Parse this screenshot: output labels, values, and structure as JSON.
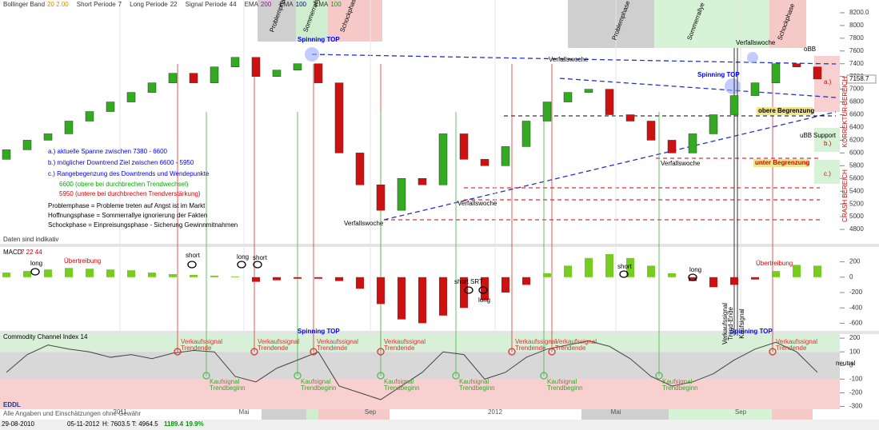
{
  "header": {
    "indicators": [
      {
        "name": "Bollinger Band",
        "params": "20 2.00"
      },
      {
        "name": "Short Periode",
        "params": "7"
      },
      {
        "name": "Long Periode",
        "params": "22"
      },
      {
        "name": "Signal Periode",
        "params": "44"
      },
      {
        "name": "EMA",
        "params": "200"
      },
      {
        "name": "EMA",
        "params": "100"
      },
      {
        "name": "EMA",
        "params": "100"
      }
    ]
  },
  "chart_data": [
    {
      "type": "candlestick",
      "open": [
        5900,
        6050,
        6200,
        6300,
        6500,
        6650,
        6800,
        6950,
        7100,
        7250,
        7100,
        7350,
        7500,
        7200,
        7300,
        7400,
        7100,
        6000,
        5500,
        5100,
        5600,
        5500,
        6300,
        5900,
        5800,
        6100,
        6500,
        6800,
        6950,
        7000,
        6600,
        6500,
        6200,
        6000,
        6300,
        6600,
        6900,
        7100,
        7400,
        7350
      ],
      "close": [
        6050,
        6200,
        6300,
        6500,
        6650,
        6800,
        6950,
        7100,
        7250,
        7100,
        7350,
        7500,
        7200,
        7300,
        7400,
        7100,
        6000,
        5500,
        5100,
        5600,
        5500,
        6300,
        5900,
        5800,
        6100,
        6500,
        6800,
        6950,
        7000,
        6600,
        6500,
        6200,
        6000,
        6300,
        6600,
        6900,
        7100,
        7400,
        7350,
        7160
      ],
      "ylim": [
        4600,
        8400
      ],
      "yticks": [
        4800,
        5000,
        5200,
        5400,
        5600,
        5800,
        6000,
        6200,
        6400,
        6600,
        6800,
        7000,
        7200,
        7400,
        7600,
        7800,
        8000,
        {
          "value": 8200,
          "label": "8200.0"
        }
      ],
      "last_value": 7158.7
    },
    {
      "type": "bar",
      "title": "MACD",
      "params": "7 22 44",
      "values": [
        60,
        80,
        100,
        120,
        110,
        100,
        90,
        60,
        40,
        30,
        20,
        10,
        -60,
        -40,
        -20,
        -20,
        -50,
        -150,
        -350,
        -550,
        -600,
        -500,
        -400,
        -300,
        -200,
        -100,
        50,
        150,
        250,
        300,
        250,
        150,
        50,
        -50,
        -130,
        -100,
        -30,
        80,
        160,
        150
      ],
      "ylim": [
        -700,
        300
      ],
      "yticks": [
        200,
        0,
        -200,
        -400,
        -600
      ]
    },
    {
      "type": "line",
      "title": "Commodity Channel Index 14",
      "values": [
        -50,
        80,
        150,
        120,
        100,
        60,
        80,
        50,
        90,
        110,
        100,
        -80,
        -120,
        -20,
        40,
        100,
        -150,
        -200,
        -250,
        -150,
        -50,
        100,
        80,
        -100,
        -50,
        60,
        120,
        150,
        180,
        140,
        50,
        -80,
        -150,
        -120,
        -60,
        40,
        120,
        170,
        100,
        -50
      ],
      "ylim": [
        -320,
        230
      ],
      "yticks": [
        200,
        100,
        0,
        -100,
        -200,
        -300
      ]
    }
  ],
  "phases": [
    "Problemphase",
    "Sommerrallye",
    "Schockphase",
    "Problemphase",
    "Sommerrallye",
    "Schockphase"
  ],
  "annotations": [
    "a.) aktuelle  Spanne zwischen 7380 - 6600",
    "b.) möglicher Downtrend Ziel zwischen 6600 - 5950",
    "c.) Rangebegenzung des Downtrends und Wendepunkte",
    "6600 (obere bei durchbrechen Trendwechsel)",
    "5950 (untere bei durchbrechen Trendverstärkung)",
    "Problemphase = Probleme treten auf Angst ist im Markt",
    "Hoffnungsphase = Sommerrallye ignorierung der Fakten",
    "Schockphase = Einpreisungsphase - Sicherung Gewinnmitnahmen",
    "Spinning TOP",
    "Spinning TOP",
    "Verfallswoche",
    "Verfallswoche",
    "Verfallswoche",
    "Verfallswoche",
    "Verfallswoche",
    "obere Begrenzung",
    "unter Begrenzung",
    "Support",
    "a.)",
    "b.)",
    "c.)",
    "oBB",
    "uBB",
    "Daten sind indikativ",
    "Übertreibung",
    "Übertreibung",
    "long",
    "short",
    "long",
    "short",
    "short SRT",
    "long",
    "short",
    "long",
    "Spinning TOP",
    "Spinning TOP",
    "neutral"
  ],
  "vertical_labels": [
    "KORREKTUR-BEREICH",
    "CRASH BEREICH",
    "Verkaufssignal",
    "Trend-Ende",
    "Kaufsignal"
  ],
  "sell_signals": [
    {
      "line1": "Verkaufssignal",
      "line2": "Trendende"
    },
    {
      "line1": "Verkaufssignal",
      "line2": "Trendende"
    },
    {
      "line1": "Verkaufssignal",
      "line2": "Trendende"
    },
    {
      "line1": "Verkaufssignal",
      "line2": "Trendende"
    },
    {
      "line1": "Verkaufssignal",
      "line2": "Trendende"
    },
    {
      "line1": "Verkaufssignal",
      "line2": "Trendende"
    },
    {
      "line1": "Verkaufssignal",
      "line2": "Trendende"
    }
  ],
  "buy_signals": [
    {
      "line1": "Kaufsignal",
      "line2": "Trendbeginn"
    },
    {
      "line1": "Kaufsignal",
      "line2": "Trendbeginn"
    },
    {
      "line1": "Kaufsignal",
      "line2": "Trendbeginn"
    },
    {
      "line1": "Kaufsignal",
      "line2": "Trendbeginn"
    },
    {
      "line1": "Kaufsignal",
      "line2": "Trendbeginn"
    },
    {
      "line1": "Kaufsignal",
      "line2": "Trendbeginn"
    }
  ],
  "time_axis": [
    "2011",
    "Mai",
    "Sep",
    "2012",
    "Mai",
    "Sep"
  ],
  "logo": {
    "name": "EDDL",
    "tagline": "Alle Angaben und Einschätzungen ohne Gewähr"
  },
  "status": {
    "start": "29-08-2010",
    "end": "05-11-2012",
    "range": "H: 7603.5  T: 4964.5",
    "change": "1189.4",
    "change_pct": "19.9%"
  }
}
